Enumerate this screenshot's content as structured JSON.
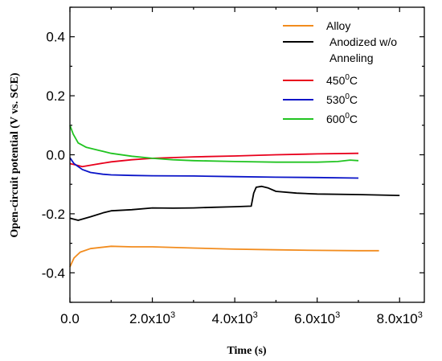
{
  "chart_data": {
    "type": "line",
    "xlabel": "Time (s)",
    "ylabel": "Open-circuit potential (V vs. SCE)",
    "xlim": [
      0,
      8600
    ],
    "ylim": [
      -0.5,
      0.5
    ],
    "grid": false,
    "legend_position": "top-right",
    "x_ticks": [
      {
        "value": 0,
        "label": "0.0",
        "sup": ""
      },
      {
        "value": 2000,
        "label": "2.0x10",
        "sup": "3"
      },
      {
        "value": 4000,
        "label": "4.0x10",
        "sup": "3"
      },
      {
        "value": 6000,
        "label": "6.0x10",
        "sup": "3"
      },
      {
        "value": 8000,
        "label": "8.0x10",
        "sup": "3"
      }
    ],
    "y_ticks": [
      {
        "value": -0.4,
        "label": "-0.4"
      },
      {
        "value": -0.2,
        "label": "-0.2"
      },
      {
        "value": 0.0,
        "label": "0.0"
      },
      {
        "value": 0.2,
        "label": "0.2"
      },
      {
        "value": 0.4,
        "label": "0.4"
      }
    ],
    "series": [
      {
        "name": "Alloy",
        "label_lines": [
          "Alloy"
        ],
        "sup": "",
        "suffix": "",
        "color": "#f28c1e",
        "points": [
          [
            0,
            -0.38
          ],
          [
            100,
            -0.35
          ],
          [
            250,
            -0.33
          ],
          [
            500,
            -0.318
          ],
          [
            1000,
            -0.31
          ],
          [
            1500,
            -0.312
          ],
          [
            2000,
            -0.312
          ],
          [
            3000,
            -0.316
          ],
          [
            4000,
            -0.32
          ],
          [
            5000,
            -0.322
          ],
          [
            6000,
            -0.324
          ],
          [
            7000,
            -0.325
          ],
          [
            7500,
            -0.325
          ]
        ]
      },
      {
        "name": "Anodized w/o Anneling",
        "label_lines": [
          "Anodized w/o",
          "Anneling"
        ],
        "sup": "",
        "suffix": "",
        "color": "#000000",
        "points": [
          [
            0,
            -0.215
          ],
          [
            200,
            -0.222
          ],
          [
            500,
            -0.21
          ],
          [
            800,
            -0.197
          ],
          [
            1000,
            -0.19
          ],
          [
            1500,
            -0.186
          ],
          [
            2000,
            -0.18
          ],
          [
            2500,
            -0.181
          ],
          [
            3000,
            -0.18
          ],
          [
            3500,
            -0.178
          ],
          [
            4000,
            -0.176
          ],
          [
            4400,
            -0.174
          ],
          [
            4460,
            -0.13
          ],
          [
            4520,
            -0.11
          ],
          [
            4650,
            -0.107
          ],
          [
            4800,
            -0.112
          ],
          [
            5000,
            -0.124
          ],
          [
            5500,
            -0.13
          ],
          [
            6000,
            -0.133
          ],
          [
            7000,
            -0.135
          ],
          [
            8000,
            -0.138
          ]
        ]
      },
      {
        "name": "450 0C",
        "label_lines": [
          "450"
        ],
        "sup": "0",
        "suffix": "C",
        "color": "#e8001c",
        "points": [
          [
            0,
            -0.03
          ],
          [
            150,
            -0.035
          ],
          [
            300,
            -0.04
          ],
          [
            600,
            -0.033
          ],
          [
            1000,
            -0.024
          ],
          [
            1500,
            -0.017
          ],
          [
            2000,
            -0.012
          ],
          [
            3000,
            -0.007
          ],
          [
            4000,
            -0.004
          ],
          [
            5000,
            0.0
          ],
          [
            6000,
            0.003
          ],
          [
            7000,
            0.005
          ]
        ]
      },
      {
        "name": "530 0C",
        "label_lines": [
          "530"
        ],
        "sup": "0",
        "suffix": "C",
        "color": "#0a14c8",
        "points": [
          [
            0,
            -0.01
          ],
          [
            100,
            -0.03
          ],
          [
            300,
            -0.05
          ],
          [
            500,
            -0.06
          ],
          [
            800,
            -0.066
          ],
          [
            1000,
            -0.068
          ],
          [
            1500,
            -0.07
          ],
          [
            2000,
            -0.071
          ],
          [
            3000,
            -0.072
          ],
          [
            4000,
            -0.074
          ],
          [
            5000,
            -0.076
          ],
          [
            6000,
            -0.077
          ],
          [
            7000,
            -0.079
          ]
        ]
      },
      {
        "name": "600 0C",
        "label_lines": [
          "600"
        ],
        "sup": "0",
        "suffix": "C",
        "color": "#21c421",
        "points": [
          [
            0,
            0.1
          ],
          [
            80,
            0.07
          ],
          [
            200,
            0.04
          ],
          [
            400,
            0.025
          ],
          [
            700,
            0.015
          ],
          [
            1000,
            0.005
          ],
          [
            1500,
            -0.005
          ],
          [
            2000,
            -0.012
          ],
          [
            2500,
            -0.017
          ],
          [
            3000,
            -0.02
          ],
          [
            4000,
            -0.023
          ],
          [
            5000,
            -0.025
          ],
          [
            6000,
            -0.025
          ],
          [
            6500,
            -0.023
          ],
          [
            6800,
            -0.018
          ],
          [
            7000,
            -0.02
          ]
        ]
      }
    ]
  }
}
